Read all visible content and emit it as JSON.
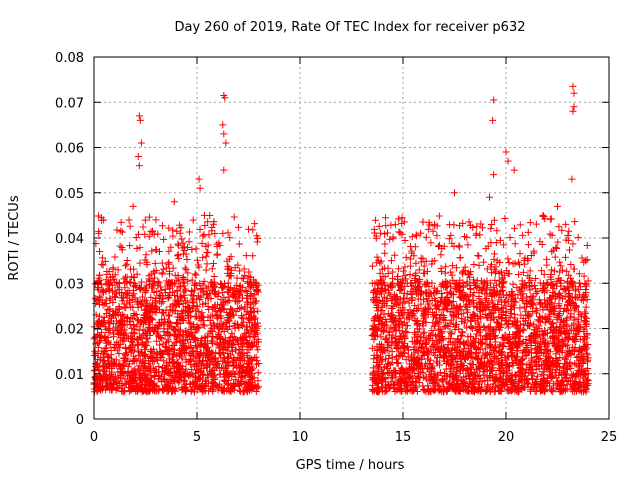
{
  "chart_data": {
    "type": "scatter",
    "title": "Day 260 of 2019, Rate Of TEC Index for receiver p632",
    "xlabel": "GPS time / hours",
    "ylabel": "ROTI / TECUs",
    "xlim": [
      0,
      25
    ],
    "ylim": [
      0,
      0.08
    ],
    "xticks": [
      "0",
      "5",
      "10",
      "15",
      "20",
      "25"
    ],
    "yticks": [
      "0",
      "0.01",
      "0.02",
      "0.03",
      "0.04",
      "0.05",
      "0.06",
      "0.07",
      "0.08"
    ],
    "grid": true,
    "marker": "+",
    "color": "#ff0000",
    "clusters": [
      {
        "name": "0-8 h",
        "x_range": [
          0.0,
          8.0
        ],
        "typical": [
          0.006,
          0.03
        ],
        "max_typical": 0.045
      },
      {
        "name": "13.5-24 h",
        "x_range": [
          13.5,
          24.0
        ],
        "typical": [
          0.006,
          0.03
        ],
        "max_typical": 0.045
      }
    ],
    "series": [
      {
        "name": "ROTI",
        "outliers": [
          [
            2.2,
            0.067
          ],
          [
            2.25,
            0.066
          ],
          [
            2.3,
            0.061
          ],
          [
            2.15,
            0.058
          ],
          [
            2.2,
            0.056
          ],
          [
            6.3,
            0.0715
          ],
          [
            6.35,
            0.071
          ],
          [
            6.25,
            0.065
          ],
          [
            6.3,
            0.063
          ],
          [
            6.4,
            0.061
          ],
          [
            6.3,
            0.055
          ],
          [
            5.1,
            0.053
          ],
          [
            5.15,
            0.051
          ],
          [
            3.9,
            0.048
          ],
          [
            1.9,
            0.047
          ],
          [
            19.4,
            0.0705
          ],
          [
            19.35,
            0.066
          ],
          [
            20.0,
            0.059
          ],
          [
            20.1,
            0.057
          ],
          [
            20.4,
            0.055
          ],
          [
            19.4,
            0.054
          ],
          [
            17.5,
            0.05
          ],
          [
            19.2,
            0.049
          ],
          [
            21.8,
            0.045
          ],
          [
            22.5,
            0.047
          ],
          [
            22.9,
            0.043
          ],
          [
            23.25,
            0.0735
          ],
          [
            23.3,
            0.072
          ],
          [
            23.3,
            0.069
          ],
          [
            23.25,
            0.068
          ],
          [
            23.2,
            0.053
          ]
        ]
      }
    ]
  }
}
